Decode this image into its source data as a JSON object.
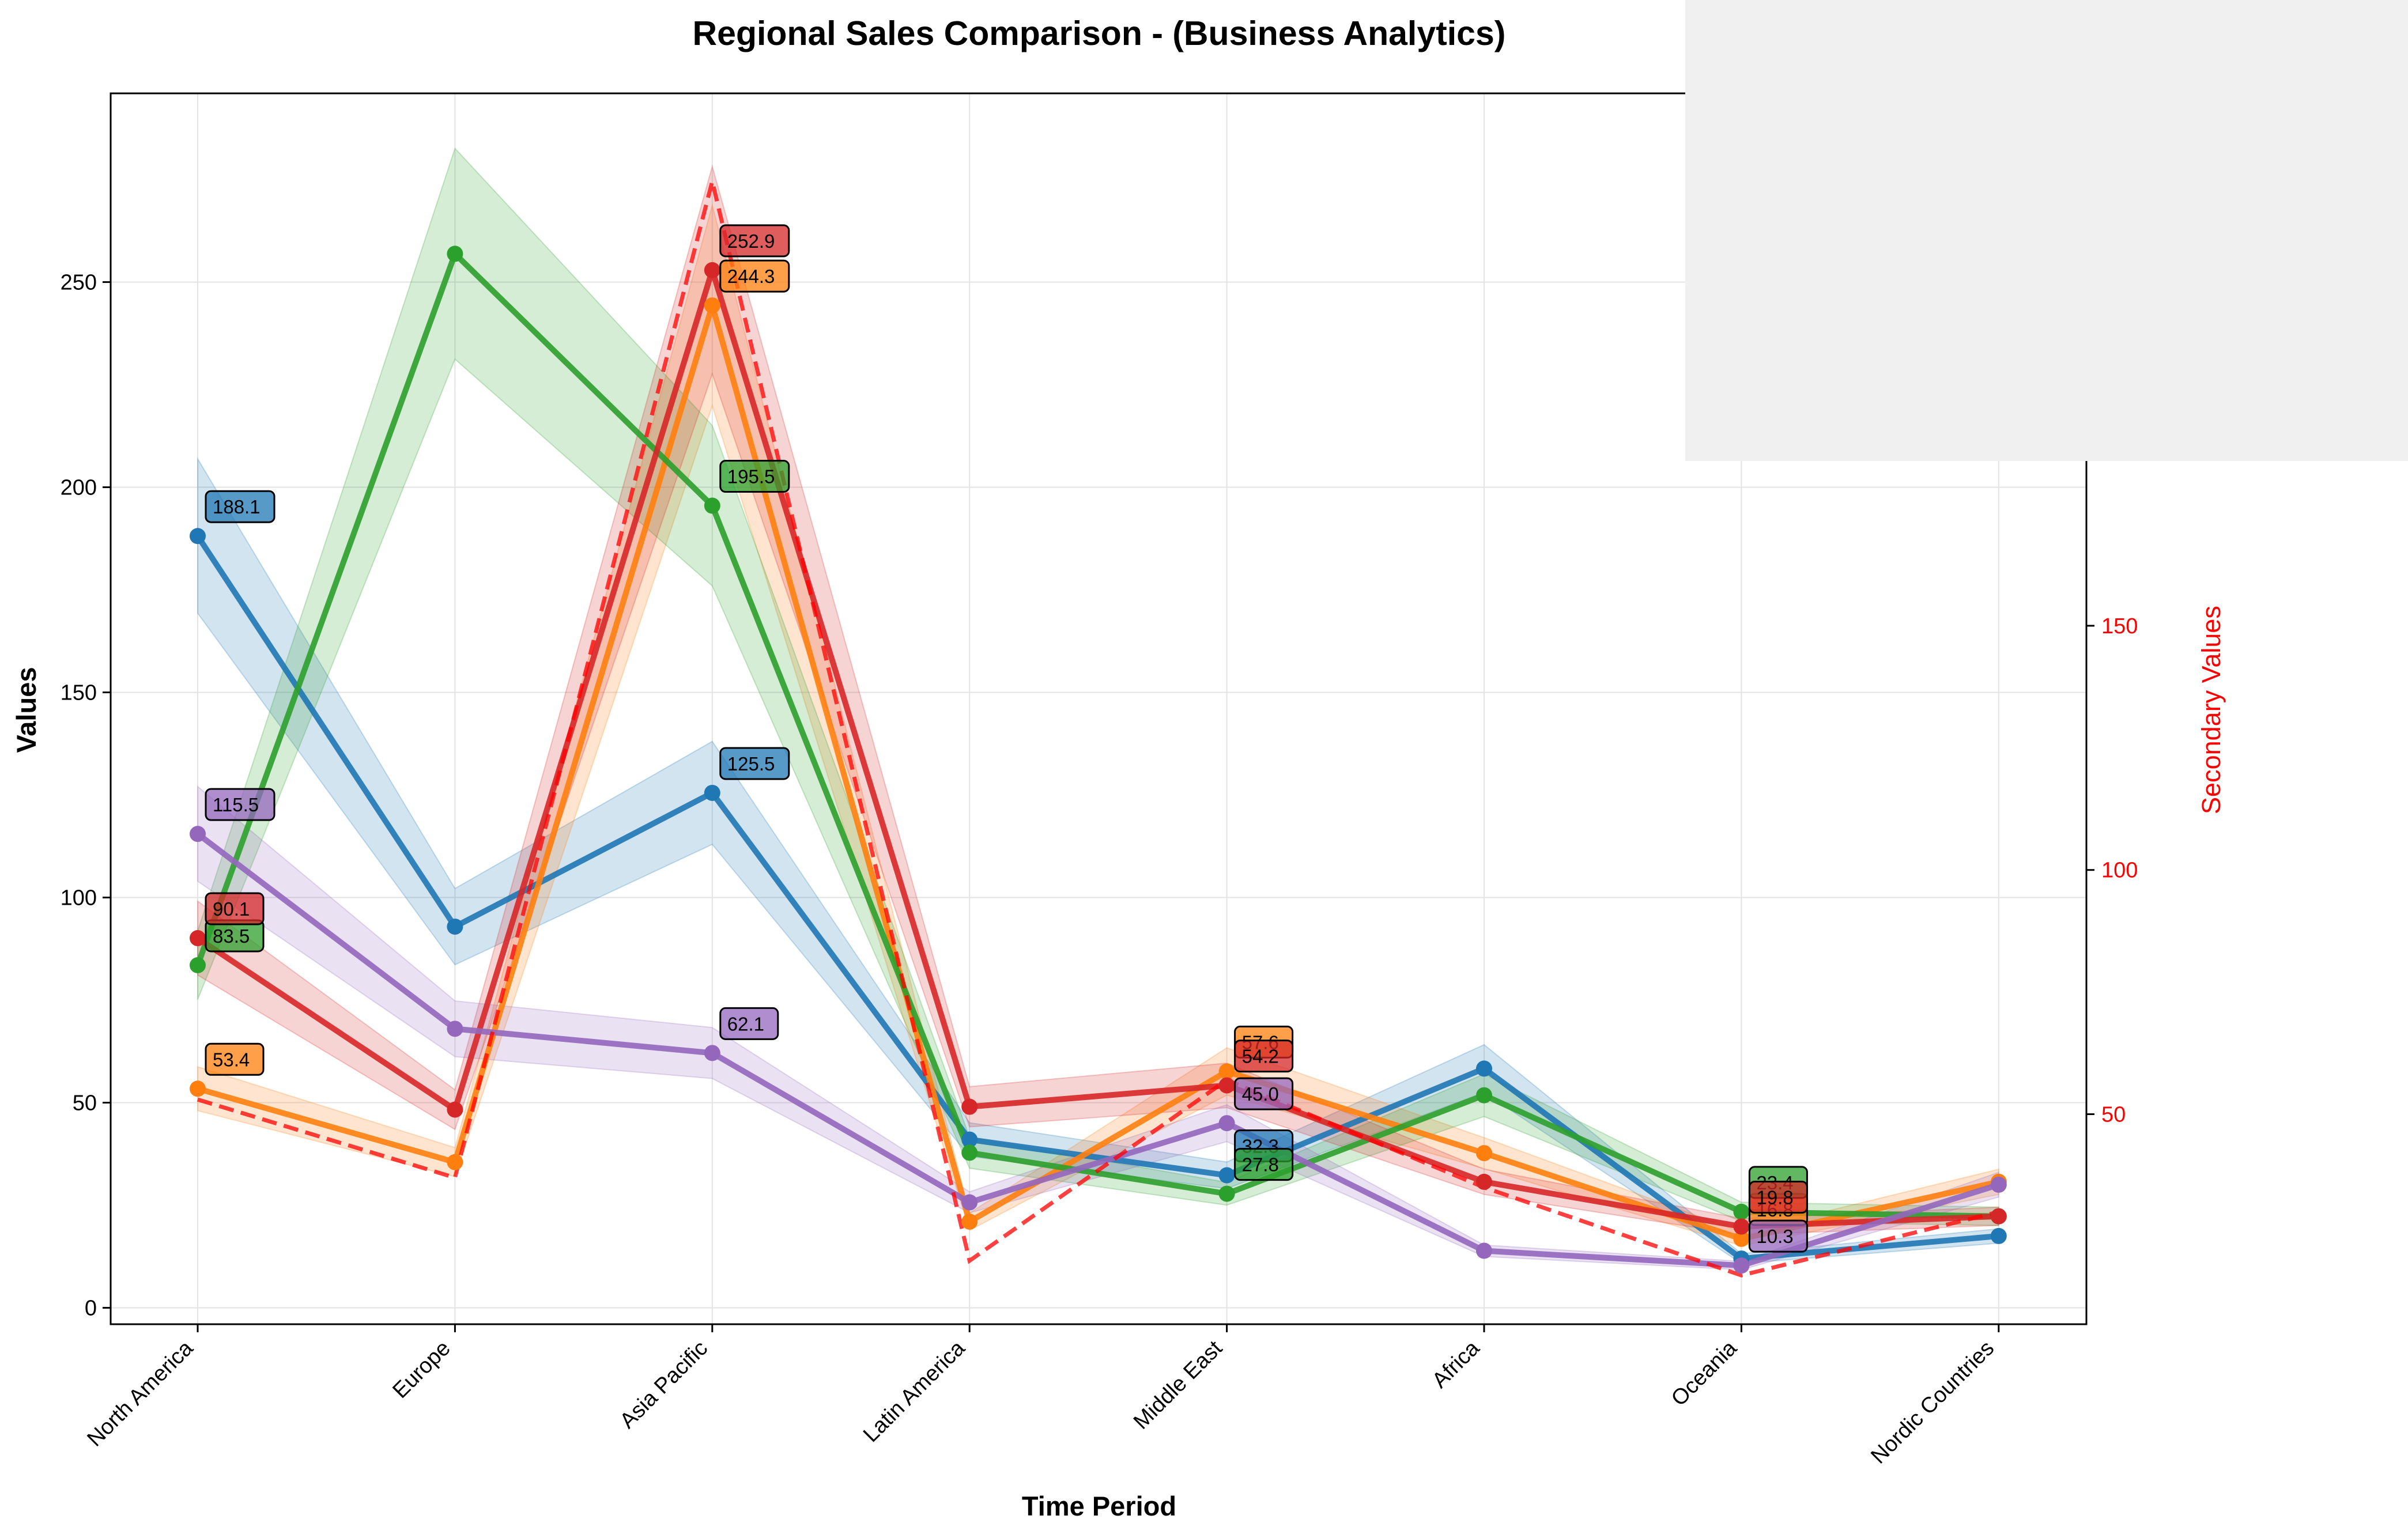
{
  "chart_data": {
    "type": "line",
    "title": "Regional Sales Comparison - (Business Analytics)",
    "xlabel": "Time Period",
    "ylabel": "Values",
    "y2label": "Secondary Values",
    "categories": [
      "North America",
      "Europe",
      "Asia Pacific",
      "Latin America",
      "Middle East",
      "Africa",
      "Oceania",
      "Nordic Countries"
    ],
    "ylim": [
      -4,
      296
    ],
    "yticks": [
      0,
      50,
      100,
      150,
      200,
      250
    ],
    "y2lim": [
      7,
      259
    ],
    "y2ticks": [
      50,
      100,
      150
    ],
    "grid": true,
    "series": [
      {
        "values": [
          188.1,
          92.9,
          125.5,
          41.0,
          32.3,
          58.3,
          12.0,
          17.5
        ],
        "band": 0.1,
        "color": "#1f77b4",
        "labels": {
          "0": "188.1",
          "2": "125.5",
          "4": "32.3"
        }
      },
      {
        "values": [
          53.4,
          35.5,
          244.3,
          21.0,
          57.6,
          37.7,
          16.8,
          30.7
        ],
        "band": 0.1,
        "color": "#ff7f0e",
        "labels": {
          "0": "53.4",
          "2": "244.3",
          "4": "57.6",
          "6": "16.8"
        }
      },
      {
        "values": [
          83.5,
          256.9,
          195.5,
          37.8,
          27.8,
          51.8,
          23.4,
          22.3
        ],
        "band": 0.1,
        "color": "#2ca02c",
        "labels": {
          "0": "83.5",
          "2": "195.5",
          "4": "27.8",
          "6": "23.4"
        }
      },
      {
        "values": [
          90.1,
          48.3,
          252.9,
          49.0,
          54.2,
          30.7,
          19.8,
          22.3
        ],
        "band": 0.1,
        "color": "#d62728",
        "labels": {
          "0": "90.1",
          "2": "252.9",
          "4": "54.2",
          "6": "19.8"
        }
      },
      {
        "values": [
          115.5,
          68.0,
          62.1,
          25.7,
          45.0,
          13.9,
          10.3,
          30.0
        ],
        "band": 0.1,
        "color": "#9467bd",
        "labels": {
          "0": "115.5",
          "2": "62.1",
          "4": "45.0",
          "6": "10.3"
        }
      }
    ],
    "secondary_series": {
      "values": [
        53,
        37,
        241,
        20,
        57,
        35,
        17,
        30
      ],
      "color": "#ff0000",
      "style": "dashed"
    },
    "legend": {
      "position": "top-right"
    }
  }
}
